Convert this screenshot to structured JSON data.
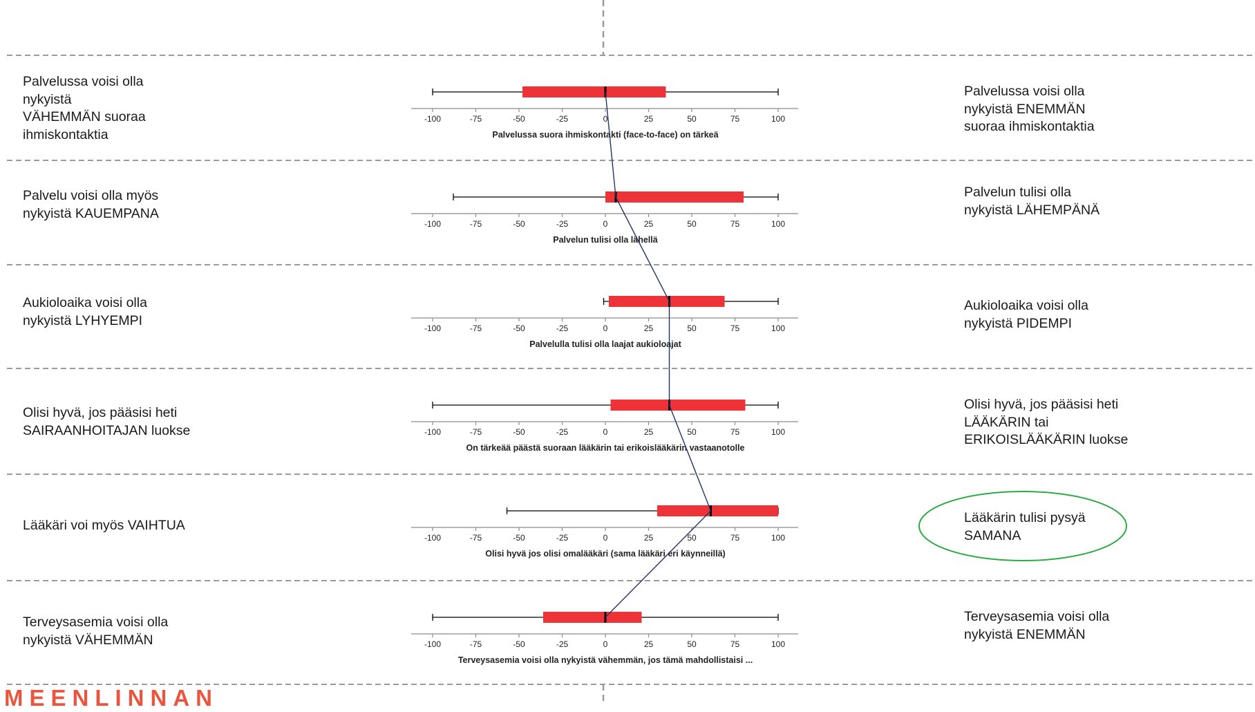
{
  "brand_text": "MEENLINNAN",
  "colors": {
    "box_fill": "#ee3338",
    "median": "#000000",
    "whisker": "#000000",
    "connector": "#1f3566",
    "separator": "#9a9a9a",
    "axis": "#8a8a8a",
    "highlight_ellipse": "#2eaa44"
  },
  "chart_data": {
    "type": "box",
    "xlim": [
      -100,
      100
    ],
    "ticks": [
      -100,
      -75,
      -50,
      -25,
      0,
      25,
      50,
      75,
      100
    ],
    "tick_labels": [
      "-100",
      "-75",
      "-50",
      "-25",
      "0",
      "25",
      "50",
      "75",
      "100"
    ],
    "median_connector": true,
    "rows": [
      {
        "xlabel": "Palvelussa suora ihmiskontakti (face-to-face) on tärkeä",
        "whisker_low": -100,
        "q1": -48,
        "median": 0,
        "q3": 35,
        "whisker_high": 100,
        "left_lines": [
          "Palvelussa voisi olla",
          "nykyistä",
          "VÄHEMMÄN suoraa",
          "ihmiskontaktia"
        ],
        "right_lines": [
          "Palvelussa voisi olla",
          "nykyistä ENEMMÄN",
          "suoraa ihmiskontaktia"
        ],
        "highlight": false
      },
      {
        "xlabel": "Palvelun tulisi olla lähellä",
        "whisker_low": -88,
        "q1": 0,
        "median": 6,
        "q3": 80,
        "whisker_high": 100,
        "left_lines": [
          "Palvelu voisi olla myös",
          "nykyistä KAUEMPANA"
        ],
        "right_lines": [
          "Palvelun tulisi olla",
          "nykyistä LÄHEMPÄNÄ"
        ],
        "highlight": false
      },
      {
        "xlabel": "Palvelulla tulisi olla laajat aukioloajat",
        "whisker_low": -1,
        "q1": 2,
        "median": 37,
        "q3": 69,
        "whisker_high": 100,
        "left_lines": [
          "Aukioloaika voisi olla",
          "nykyistä LYHYEMPI"
        ],
        "right_lines": [
          "Aukioloaika voisi olla",
          "nykyistä PIDEMPI"
        ],
        "highlight": false
      },
      {
        "xlabel": "On tärkeää päästä suoraan lääkärin tai erikoislääkärin vastaanotolle",
        "whisker_low": -100,
        "q1": 3,
        "median": 37,
        "q3": 81,
        "whisker_high": 100,
        "left_lines": [
          "Olisi hyvä, jos pääsisi heti",
          "SAIRAANHOITAJAN luokse"
        ],
        "right_lines": [
          "Olisi hyvä, jos pääsisi heti",
          "LÄÄKÄRIN tai",
          "ERIKOISLÄÄKÄRIN luokse"
        ],
        "highlight": false
      },
      {
        "xlabel": "Olisi hyvä jos olisi omalääkäri (sama lääkäri eri käynneillä)",
        "whisker_low": -57,
        "q1": 30,
        "median": 61,
        "q3": 100,
        "whisker_high": 100,
        "left_lines": [
          "Lääkäri voi myös VAIHTUA"
        ],
        "right_lines": [
          "Lääkärin tulisi pysyä",
          "SAMANA"
        ],
        "highlight": true
      },
      {
        "xlabel": "Terveysasemia voisi olla nykyistä vähemmän, jos tämä mahdollistaisi ...",
        "whisker_low": -100,
        "q1": -36,
        "median": 0,
        "q3": 21,
        "whisker_high": 100,
        "left_lines": [
          "Terveysasemia voisi olla",
          "nykyistä VÄHEMMÄN"
        ],
        "right_lines": [
          "Terveysasemia voisi olla",
          "nykyistä ENEMMÄN"
        ],
        "highlight": false
      }
    ]
  }
}
